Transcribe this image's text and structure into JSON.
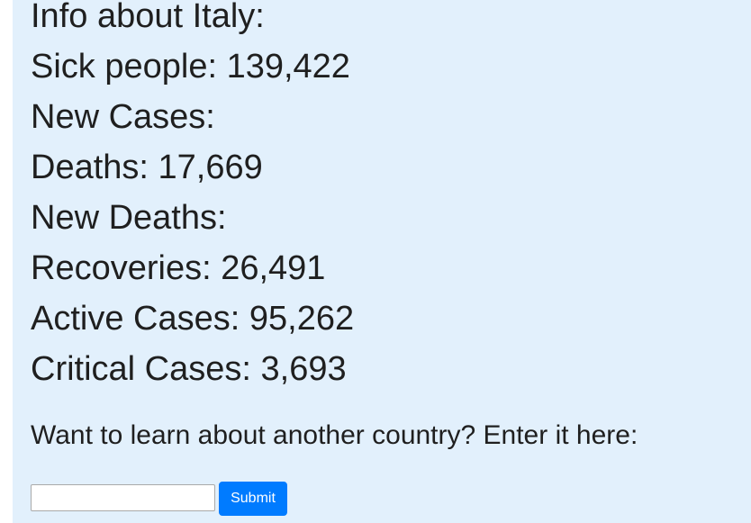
{
  "info": {
    "title": "Info about Italy:",
    "lines": [
      "Sick people: 139,422",
      "New Cases:",
      "Deaths: 17,669",
      "New Deaths:",
      "Recoveries: 26,491",
      "Active Cases: 95,262",
      "Critical Cases: 3,693"
    ]
  },
  "search": {
    "prompt": "Want to learn about another country? Enter it here:",
    "value": "",
    "placeholder": "",
    "submit_label": "Submit"
  },
  "colors": {
    "panel_background": "#e2f0fc",
    "text": "#1f1f1f",
    "button_primary": "#007bff",
    "button_text": "#ffffff"
  }
}
